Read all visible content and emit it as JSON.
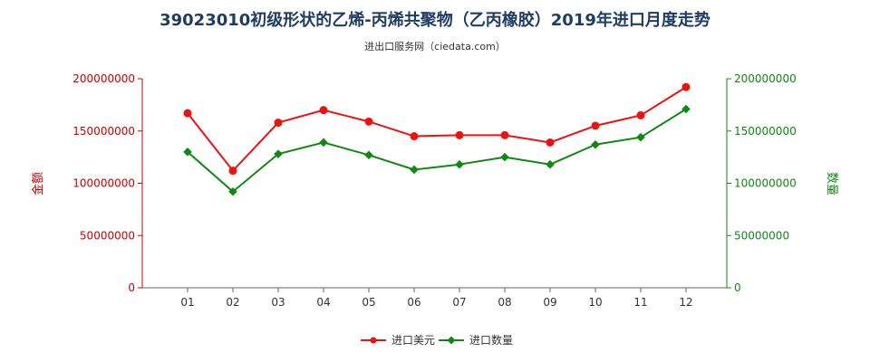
{
  "title": "39023010初级形状的乙烯-丙烯共聚物（乙丙橡胶）2019年进口月度走势",
  "subtitle": "进出口服务网（ciedata.com）",
  "colors": {
    "left": "#ee1111",
    "right": "#118811",
    "axis_left": "#cc0000",
    "axis_right": "#118811"
  },
  "chart_data": {
    "type": "line",
    "categories": [
      "01",
      "02",
      "03",
      "04",
      "05",
      "06",
      "07",
      "08",
      "09",
      "10",
      "11",
      "12"
    ],
    "y_left": {
      "label": "金额",
      "ylim": [
        0,
        200000000
      ],
      "ticks": [
        "0",
        "50000000",
        "100000000",
        "150000000",
        "200000000"
      ]
    },
    "y_right": {
      "label": "数量",
      "ylim": [
        0,
        200000000
      ],
      "ticks": [
        "0",
        "50000000",
        "100000000",
        "150000000",
        "200000000"
      ]
    },
    "series": [
      {
        "name": "进口美元",
        "axis": "left",
        "color": "#ee1111",
        "marker": "circle",
        "values": [
          167000000,
          112000000,
          158000000,
          170000000,
          159000000,
          145000000,
          146000000,
          146000000,
          139000000,
          155000000,
          165000000,
          192000000
        ]
      },
      {
        "name": "进口数量",
        "axis": "right",
        "color": "#118811",
        "marker": "diamond",
        "values": [
          130000000,
          92000000,
          128000000,
          139000000,
          127000000,
          113000000,
          118000000,
          125000000,
          118000000,
          137000000,
          144000000,
          171000000
        ]
      }
    ],
    "legend": "bottom",
    "grid": false
  }
}
